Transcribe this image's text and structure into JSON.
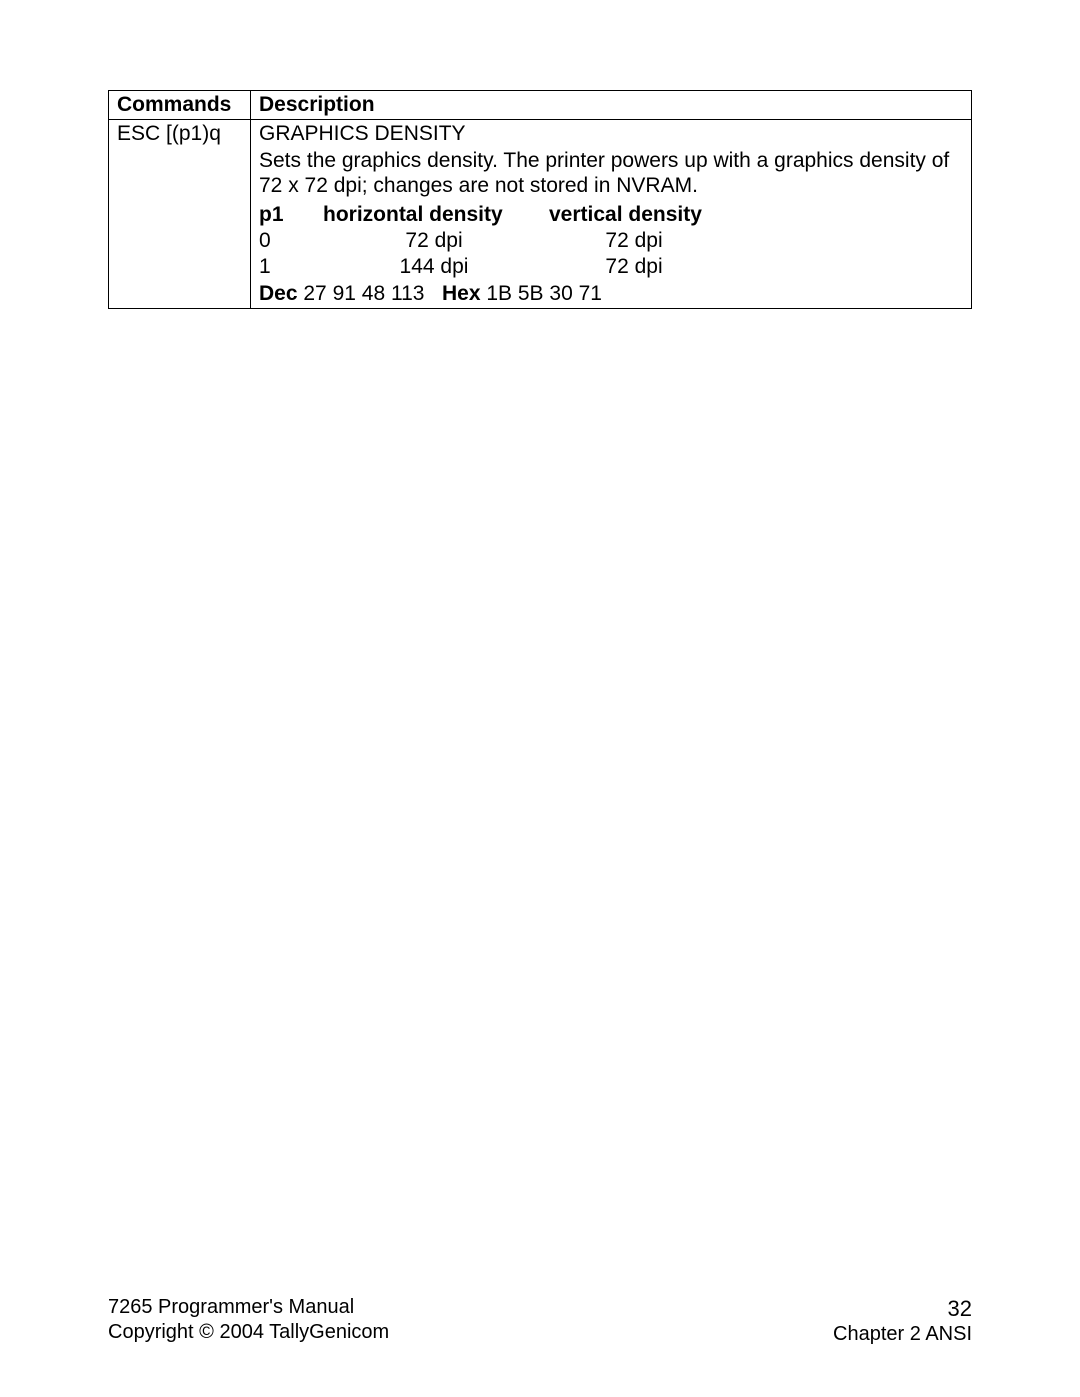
{
  "table": {
    "headers": {
      "commands": "Commands",
      "description": "Description"
    },
    "row": {
      "command": "ESC [(p1)q",
      "title": "GRAPHICS DENSITY",
      "text": "Sets the graphics density. The printer powers up with a graphics density of 72 x 72 dpi; changes are not stored in NVRAM.",
      "innerHeaders": {
        "p1": "p1",
        "hd": "horizontal density",
        "vd": "vertical density"
      },
      "innerRows": [
        {
          "p1": "0",
          "hd": "72 dpi",
          "vd": "72 dpi"
        },
        {
          "p1": "1",
          "hd": "144 dpi",
          "vd": "72 dpi"
        }
      ],
      "codes": {
        "decLabel": "Dec",
        "decValues": "27  91  48  113",
        "hexLabel": "Hex",
        "hexValues": "1B  5B  30  71"
      }
    }
  },
  "footer": {
    "manual": "7265 Programmer's Manual",
    "copyright": "Copyright © 2004 TallyGenicom",
    "pageNumber": "32",
    "chapter": "Chapter 2 ANSI"
  }
}
